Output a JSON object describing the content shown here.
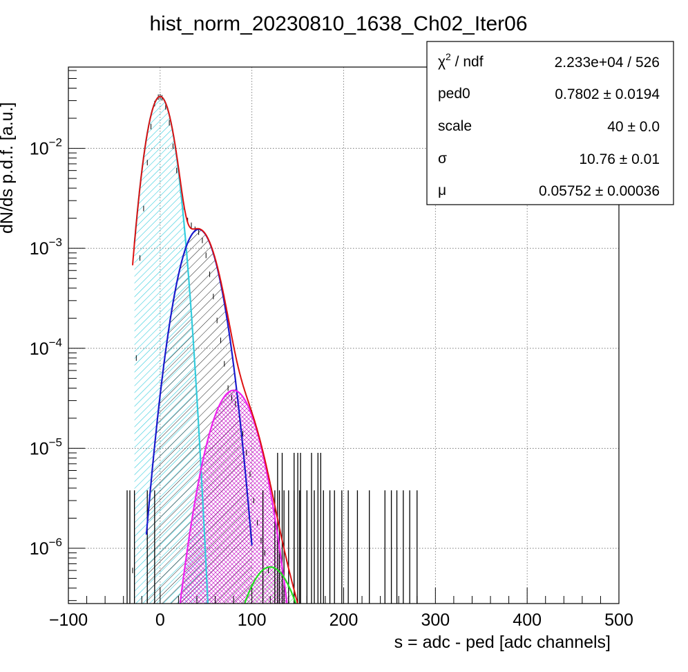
{
  "chart_data": {
    "type": "line",
    "title": "hist_norm_20230810_1638_Ch02_Iter06",
    "xlabel": "s = adc - ped [adc channels]",
    "ylabel": "dN/ds p.d.f. [a.u.]",
    "xlim": [
      -100,
      500
    ],
    "ylim": [
      2.8e-07,
      0.065
    ],
    "yscale": "log",
    "grid": true,
    "x_ticks": [
      {
        "value": -100,
        "label": "−100"
      },
      {
        "value": 0,
        "label": "0"
      },
      {
        "value": 100,
        "label": "100"
      },
      {
        "value": 200,
        "label": "200"
      },
      {
        "value": 300,
        "label": "300"
      },
      {
        "value": 400,
        "label": "400"
      },
      {
        "value": 500,
        "label": "500"
      }
    ],
    "y_ticks": [
      {
        "value": 0.01,
        "base": "10",
        "exp": "−2"
      },
      {
        "value": 0.001,
        "base": "10",
        "exp": "−3"
      },
      {
        "value": 0.0001,
        "base": "10",
        "exp": "−4"
      },
      {
        "value": 1e-05,
        "base": "10",
        "exp": "−5"
      },
      {
        "value": 1e-06,
        "base": "10",
        "exp": "−6"
      }
    ],
    "stats_box": {
      "placement": "top-right",
      "rows": [
        {
          "name_html": "χ<tspan baseline-shift='super' font-size='14'>2</tspan> / ndf",
          "name": "χ² / ndf",
          "value": "2.233e+04 / 526"
        },
        {
          "name": "ped0",
          "value": "0.7802 ± 0.0194"
        },
        {
          "name": "scale",
          "value": "40 ± 0.0"
        },
        {
          "name": "σ",
          "value": "10.76 ± 0.01"
        },
        {
          "name": "μ",
          "value": "0.05752 ± 0.00036"
        }
      ]
    },
    "components": [
      {
        "color": "#33ccdd",
        "mean": 0,
        "sigma": 10.76,
        "peak": 0.033,
        "xmin": -28,
        "xmax": 60,
        "hatch": "cyan"
      },
      {
        "color": "#1a1acc",
        "mean": 42,
        "sigma": 15.2,
        "peak": 0.00155,
        "xmin": -15,
        "xmax": 100,
        "hatch": "black"
      },
      {
        "color": "#ee22ee",
        "mean": 80,
        "sigma": 18.6,
        "peak": 3.8e-05,
        "xmin": 20,
        "xmax": 140,
        "hatch": "magenta"
      },
      {
        "color": "#22dd22",
        "mean": 120,
        "sigma": 21.5,
        "peak": 6.5e-07,
        "xmin": 90,
        "xmax": 150,
        "hatch": "green"
      }
    ],
    "total_fit": {
      "color": "#dd1111",
      "xmin": -30,
      "xmax": 150
    },
    "data_points": {
      "x": [
        -30,
        -26,
        -22,
        -18,
        -14,
        -10,
        -6,
        -2,
        0,
        2,
        6,
        10,
        14,
        18,
        22,
        26,
        30,
        34,
        38,
        42,
        46,
        50,
        54,
        58,
        62,
        66,
        70,
        74,
        78,
        82,
        86,
        90,
        94,
        98,
        102,
        106,
        110,
        114,
        118
      ],
      "y": [
        6e-07,
        8e-05,
        0.0008,
        0.0025,
        0.0072,
        0.0165,
        0.028,
        0.0325,
        0.0328,
        0.032,
        0.026,
        0.018,
        0.0105,
        0.006,
        0.0038,
        0.0026,
        0.0019,
        0.0017,
        0.00155,
        0.00145,
        0.0012,
        0.00085,
        0.00055,
        0.00033,
        0.00019,
        0.00012,
        7e-05,
        4e-05,
        3.2e-05,
        2.8e-05,
        2.2e-05,
        1.4e-05,
        9e-06,
        5.5e-06,
        3e-06,
        1.8e-06,
        1.2e-06,
        9e-07,
        6e-07
      ]
    },
    "spikes": {
      "y_low": 3.8e-06,
      "y_high": 9e-06,
      "x_low": [
        -36,
        -33,
        -28,
        -14,
        -6,
        112,
        125,
        130,
        135,
        140,
        146,
        152,
        160,
        168,
        178,
        185,
        190,
        198,
        205,
        215,
        228,
        245,
        252,
        258,
        265,
        272,
        280
      ],
      "x_high": [
        128,
        133,
        146,
        150,
        153,
        165,
        172,
        175
      ]
    }
  }
}
